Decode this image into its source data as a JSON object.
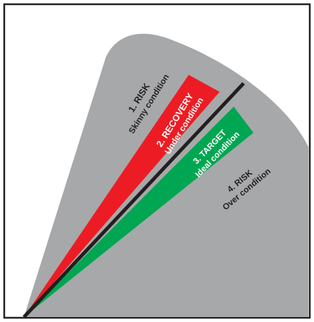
{
  "colors": {
    "background": "#ffffff",
    "frame": "#231f20",
    "risk_zone": "#a7a8aa",
    "recovery_zone": "#ed1c24",
    "target_zone": "#00a651",
    "ideal_line": "#231f20",
    "dark_text": "#231f20",
    "light_text": "#ffffff"
  },
  "zones": [
    {
      "id": "risk-skinny",
      "number_label": "1.  RISK",
      "condition_label": "Skinny condition"
    },
    {
      "id": "recovery",
      "number_label": "2. RECOVERY",
      "condition_label": "Under condition"
    },
    {
      "id": "target",
      "number_label": "3. TARGET",
      "condition_label": "Ideal condition"
    },
    {
      "id": "risk-over",
      "number_label": "4. RISK",
      "condition_label": "Over condition"
    }
  ]
}
